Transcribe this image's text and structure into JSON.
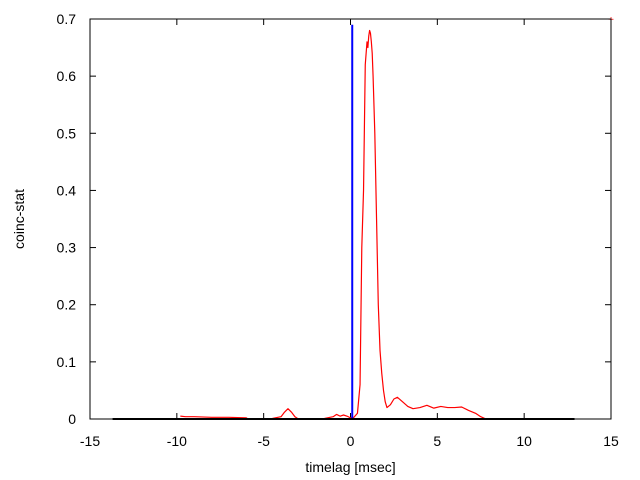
{
  "chart_data": {
    "type": "line",
    "title": "",
    "xlabel": "timelag [msec]",
    "ylabel": "coinc-stat",
    "xlim": [
      -15,
      15
    ],
    "ylim": [
      0,
      0.7
    ],
    "x_ticks": [
      "-15",
      "-10",
      "-5",
      "0",
      "5",
      "10",
      "15"
    ],
    "y_ticks": [
      "0",
      "0.1",
      "0.2",
      "0.3",
      "0.4",
      "0.5",
      "0.6",
      "0.7"
    ],
    "grid": false,
    "legend": "none",
    "series": [
      {
        "color": "#ff0000",
        "x": [
          -9.8,
          -9.5,
          -9.0,
          -8.0,
          -7.0,
          -6.0,
          -5.9,
          -5.5,
          -4.5,
          -4.0,
          -3.8,
          -3.6,
          -3.4,
          -3.2,
          -3.0,
          -2.5,
          -2.0,
          -1.5,
          -1.0,
          -0.8,
          -0.6,
          -0.4,
          -0.2,
          0.0,
          0.2,
          0.4,
          0.55,
          0.65,
          0.75,
          0.85,
          0.95,
          1.0,
          1.05,
          1.1,
          1.15,
          1.2,
          1.25,
          1.3,
          1.4,
          1.5,
          1.6,
          1.7,
          1.8,
          1.9,
          2.0,
          2.1,
          2.3,
          2.5,
          2.7,
          3.0,
          3.3,
          3.6,
          4.0,
          4.4,
          4.8,
          5.2,
          5.6,
          6.0,
          6.4,
          6.8,
          7.2,
          7.5,
          7.8
        ],
        "y": [
          0.005,
          0.004,
          0.004,
          0.003,
          0.003,
          0.002,
          0.0,
          0.0,
          0.001,
          0.004,
          0.012,
          0.018,
          0.012,
          0.004,
          0.0,
          0.0,
          0.0,
          0.001,
          0.004,
          0.008,
          0.005,
          0.007,
          0.005,
          0.002,
          0.003,
          0.01,
          0.06,
          0.3,
          0.4,
          0.62,
          0.66,
          0.65,
          0.67,
          0.68,
          0.675,
          0.66,
          0.64,
          0.6,
          0.5,
          0.35,
          0.2,
          0.12,
          0.08,
          0.05,
          0.03,
          0.02,
          0.025,
          0.035,
          0.038,
          0.03,
          0.022,
          0.018,
          0.02,
          0.024,
          0.019,
          0.022,
          0.02,
          0.02,
          0.021,
          0.015,
          0.01,
          0.004,
          0.0
        ]
      },
      {
        "color": "#0000ff",
        "type": "vline",
        "x": [
          0.1,
          0.1
        ],
        "y": [
          0,
          0.69
        ]
      },
      {
        "color": "#000000",
        "type": "baseline",
        "x": [
          -13.7,
          12.9
        ],
        "y": [
          0,
          0
        ]
      }
    ]
  }
}
